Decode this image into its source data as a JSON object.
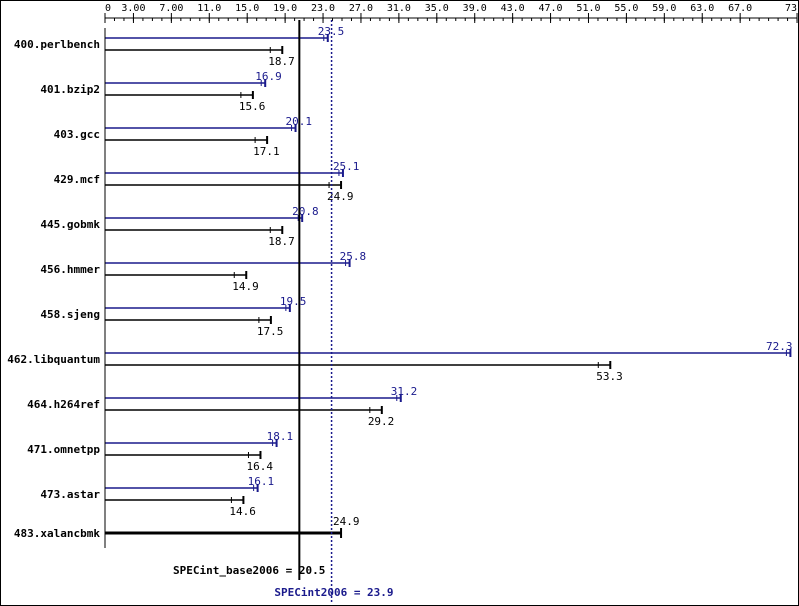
{
  "colors": {
    "peak": "#1a1a8c",
    "base": "#000000",
    "frame": "#000000",
    "background": "#ffffff"
  },
  "chart_data": {
    "type": "bar",
    "orientation": "horizontal",
    "xlim": [
      0,
      73.0
    ],
    "x_ticks": [
      {
        "value": 0,
        "label": "0"
      },
      {
        "value": 3,
        "label": "3.00"
      },
      {
        "value": 7,
        "label": "7.00"
      },
      {
        "value": 11,
        "label": "11.0"
      },
      {
        "value": 15,
        "label": "15.0"
      },
      {
        "value": 19,
        "label": "19.0"
      },
      {
        "value": 23,
        "label": "23.0"
      },
      {
        "value": 27,
        "label": "27.0"
      },
      {
        "value": 31,
        "label": "31.0"
      },
      {
        "value": 35,
        "label": "35.0"
      },
      {
        "value": 39,
        "label": "39.0"
      },
      {
        "value": 43,
        "label": "43.0"
      },
      {
        "value": 47,
        "label": "47.0"
      },
      {
        "value": 51,
        "label": "51.0"
      },
      {
        "value": 55,
        "label": "55.0"
      },
      {
        "value": 59,
        "label": "59.0"
      },
      {
        "value": 63,
        "label": "63.0"
      },
      {
        "value": 67,
        "label": "67.0"
      },
      {
        "value": 73,
        "label": "73.0"
      }
    ],
    "grid": false,
    "categories": [
      "400.perlbench",
      "401.bzip2",
      "403.gcc",
      "429.mcf",
      "445.gobmk",
      "456.hmmer",
      "458.sjeng",
      "462.libquantum",
      "464.h264ref",
      "471.omnetpp",
      "473.astar",
      "483.xalancbmk"
    ],
    "series": [
      {
        "key": "peak",
        "values": [
          23.5,
          16.9,
          20.1,
          25.1,
          20.8,
          25.8,
          19.5,
          72.3,
          31.2,
          18.1,
          16.1,
          24.9
        ],
        "labels": [
          "23.5",
          "16.9",
          "20.1",
          "25.1",
          "20.8",
          "25.8",
          "19.5",
          "72.3",
          "31.2",
          "18.1",
          "16.1",
          "24.9"
        ]
      },
      {
        "key": "base",
        "values": [
          18.7,
          15.6,
          17.1,
          24.9,
          18.7,
          14.9,
          17.5,
          53.3,
          29.2,
          16.4,
          14.6,
          24.9
        ],
        "labels": [
          "18.7",
          "15.6",
          "17.1",
          "24.9",
          "18.7",
          "14.9",
          "17.5",
          "53.3",
          "29.2",
          "16.4",
          "14.6",
          ""
        ]
      }
    ],
    "reference_lines": [
      {
        "key": "base",
        "value": 20.5,
        "label": "SPECint_base2006 = 20.5",
        "style": "solid"
      },
      {
        "key": "peak",
        "value": 23.9,
        "label": "SPECint2006 = 23.9",
        "style": "dotted"
      }
    ]
  }
}
